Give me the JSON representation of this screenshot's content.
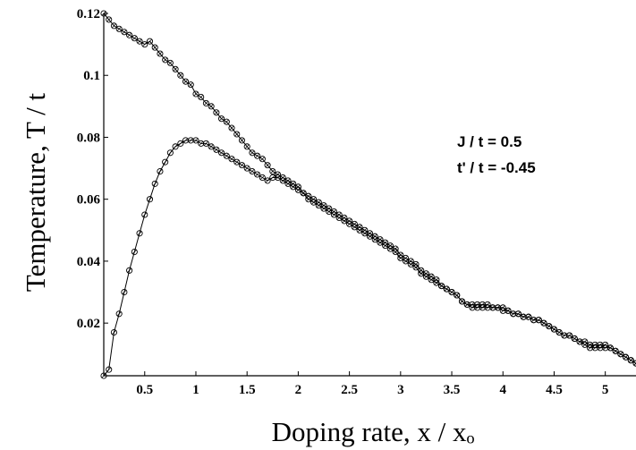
{
  "chart_data": {
    "type": "line",
    "xlabel": "Doping rate, x / xₒ",
    "ylabel": "Temperature,  T / t",
    "xlim": [
      0.1,
      5.3
    ],
    "ylim": [
      0.003,
      0.12
    ],
    "xticks": [
      0.5,
      1,
      1.5,
      2,
      2.5,
      3,
      3.5,
      4,
      4.5,
      5
    ],
    "xtick_labels": [
      "0.5",
      "1",
      "1.5",
      "2",
      "2.5",
      "3",
      "3.5",
      "4",
      "4.5",
      "5"
    ],
    "yticks": [
      0.02,
      0.04,
      0.06,
      0.08,
      0.1,
      0.12
    ],
    "ytick_labels": [
      "0.02",
      "0.04",
      "0.06",
      "0.08",
      "0.1",
      "0.12"
    ],
    "annotations": [
      "J / t = 0.5",
      "t' / t = -0.45"
    ],
    "grid": false,
    "marker": "open-circle",
    "series": [
      {
        "x": [
          0.1,
          0.15,
          0.2,
          0.25,
          0.3,
          0.35,
          0.4,
          0.45,
          0.5,
          0.55,
          0.6,
          0.65,
          0.7,
          0.75,
          0.8,
          0.85,
          0.9,
          0.95,
          1.0,
          1.05,
          1.1,
          1.15,
          1.2,
          1.25,
          1.3,
          1.35,
          1.4,
          1.45,
          1.5,
          1.55,
          1.6,
          1.65,
          1.7,
          1.75,
          1.8,
          1.85,
          1.9,
          1.95,
          2.0,
          2.05,
          2.1,
          2.15,
          2.2,
          2.25,
          2.3,
          2.35,
          2.4,
          2.45,
          2.5,
          2.55,
          2.6,
          2.65,
          2.7,
          2.75,
          2.8,
          2.85,
          2.9,
          2.95,
          3.0,
          3.05,
          3.1,
          3.15,
          3.2,
          3.25,
          3.3,
          3.35,
          3.4,
          3.45,
          3.5,
          3.55,
          3.6,
          3.65,
          3.7,
          3.75,
          3.8,
          3.85,
          3.9,
          3.95,
          4.0,
          4.05,
          4.1,
          4.15,
          4.2,
          4.25,
          4.3,
          4.35,
          4.4,
          4.45,
          4.5,
          4.55,
          4.6,
          4.65,
          4.7,
          4.75,
          4.8,
          4.85,
          4.9,
          4.95,
          5.0,
          5.05,
          5.1,
          5.15,
          5.2,
          5.25,
          5.3
        ],
        "y": [
          0.12,
          0.118,
          0.116,
          0.115,
          0.114,
          0.113,
          0.112,
          0.111,
          0.11,
          0.111,
          0.109,
          0.107,
          0.105,
          0.104,
          0.102,
          0.1,
          0.098,
          0.097,
          0.094,
          0.093,
          0.091,
          0.09,
          0.088,
          0.086,
          0.085,
          0.083,
          0.081,
          0.079,
          0.077,
          0.075,
          0.074,
          0.073,
          0.071,
          0.069,
          0.068,
          0.067,
          0.066,
          0.065,
          0.064,
          0.062,
          0.06,
          0.059,
          0.058,
          0.057,
          0.056,
          0.055,
          0.054,
          0.053,
          0.052,
          0.051,
          0.05,
          0.049,
          0.048,
          0.047,
          0.046,
          0.045,
          0.044,
          0.043,
          0.041,
          0.04,
          0.039,
          0.038,
          0.036,
          0.035,
          0.034,
          0.033,
          0.032,
          0.031,
          0.03,
          0.029,
          0.027,
          0.026,
          0.026,
          0.026,
          0.026,
          0.026,
          0.025,
          0.025,
          0.025,
          0.024,
          0.023,
          0.023,
          0.022,
          0.022,
          0.021,
          0.021,
          0.02,
          0.019,
          0.018,
          0.017,
          0.016,
          0.016,
          0.015,
          0.014,
          0.014,
          0.013,
          0.013,
          0.013,
          0.013,
          0.012,
          0.011,
          0.01,
          0.009,
          0.008,
          0.007
        ]
      },
      {
        "x": [
          0.1,
          0.15,
          0.2,
          0.25,
          0.3,
          0.35,
          0.4,
          0.45,
          0.5,
          0.55,
          0.6,
          0.65,
          0.7,
          0.75,
          0.8,
          0.85,
          0.9,
          0.95,
          1.0,
          1.05,
          1.1,
          1.15,
          1.2,
          1.25,
          1.3,
          1.35,
          1.4,
          1.45,
          1.5,
          1.55,
          1.6,
          1.65,
          1.7,
          1.75,
          1.8,
          1.85,
          1.9,
          1.95,
          2.0,
          2.05,
          2.1,
          2.15,
          2.2,
          2.25,
          2.3,
          2.35,
          2.4,
          2.45,
          2.5,
          2.55,
          2.6,
          2.65,
          2.7,
          2.75,
          2.8,
          2.85,
          2.9,
          2.95,
          3.0,
          3.05,
          3.1,
          3.15,
          3.2,
          3.25,
          3.3,
          3.35,
          3.4,
          3.45,
          3.5,
          3.55,
          3.6,
          3.65,
          3.7,
          3.75,
          3.8,
          3.85,
          3.9,
          3.95,
          4.0,
          4.05,
          4.1,
          4.15,
          4.2,
          4.25,
          4.3,
          4.35,
          4.4,
          4.45,
          4.5,
          4.55,
          4.6,
          4.65,
          4.7,
          4.75,
          4.8,
          4.85,
          4.9,
          4.95,
          5.0,
          5.05,
          5.1,
          5.15,
          5.2,
          5.25,
          5.3
        ],
        "y": [
          0.003,
          0.005,
          0.017,
          0.023,
          0.03,
          0.037,
          0.043,
          0.049,
          0.055,
          0.06,
          0.065,
          0.069,
          0.072,
          0.075,
          0.077,
          0.078,
          0.079,
          0.079,
          0.079,
          0.078,
          0.078,
          0.077,
          0.076,
          0.075,
          0.074,
          0.073,
          0.072,
          0.071,
          0.07,
          0.069,
          0.068,
          0.067,
          0.066,
          0.067,
          0.067,
          0.066,
          0.065,
          0.064,
          0.063,
          0.062,
          0.061,
          0.06,
          0.059,
          0.058,
          0.057,
          0.056,
          0.055,
          0.054,
          0.053,
          0.052,
          0.051,
          0.05,
          0.049,
          0.048,
          0.047,
          0.046,
          0.045,
          0.044,
          0.042,
          0.041,
          0.04,
          0.039,
          0.037,
          0.036,
          0.035,
          0.034,
          0.032,
          0.031,
          0.03,
          0.029,
          0.027,
          0.026,
          0.025,
          0.025,
          0.025,
          0.025,
          0.025,
          0.025,
          0.024,
          0.024,
          0.023,
          0.023,
          0.022,
          0.022,
          0.021,
          0.021,
          0.02,
          0.019,
          0.018,
          0.017,
          0.016,
          0.016,
          0.015,
          0.014,
          0.013,
          0.012,
          0.012,
          0.012,
          0.012,
          0.012,
          0.011,
          0.01,
          0.009,
          0.008,
          0.007
        ]
      }
    ]
  }
}
